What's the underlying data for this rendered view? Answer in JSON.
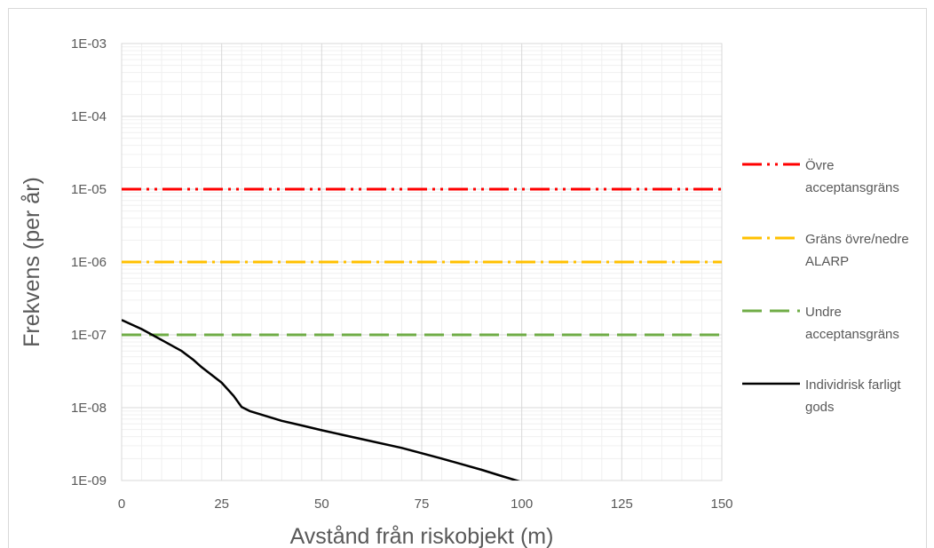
{
  "chart_data": {
    "type": "line",
    "title": "",
    "xlabel": "Avstånd från riskobjekt (m)",
    "ylabel": "Frekvens (per år)",
    "xlim": [
      0,
      150
    ],
    "ylim": [
      1e-09,
      0.001
    ],
    "yscale": "log",
    "x_ticks": [
      0,
      25,
      50,
      75,
      100,
      125,
      150
    ],
    "x_tick_labels": [
      "0",
      "25",
      "50",
      "75",
      "100",
      "125",
      "150"
    ],
    "y_ticks": [
      1e-09,
      1e-08,
      1e-07,
      1e-06,
      1e-05,
      0.0001,
      0.001
    ],
    "y_tick_labels": [
      "1E-09",
      "1E-08",
      "1E-07",
      "1E-06",
      "1E-05",
      "1E-04",
      "1E-03"
    ],
    "grid": true,
    "legend_position": "right",
    "series": [
      {
        "name": "Övre acceptansgräns",
        "legend_lines": [
          "Övre",
          "acceptansgräns"
        ],
        "color": "#ff0000",
        "dash": "dash-dot-dot",
        "x": [
          0,
          150
        ],
        "y": [
          1e-05,
          1e-05
        ]
      },
      {
        "name": "Gräns övre/nedre ALARP",
        "legend_lines": [
          "Gräns övre/nedre",
          "ALARP"
        ],
        "color": "#ffc000",
        "dash": "dash-dot",
        "x": [
          0,
          150
        ],
        "y": [
          1e-06,
          1e-06
        ]
      },
      {
        "name": "Undre acceptansgräns",
        "legend_lines": [
          "Undre",
          "acceptansgräns"
        ],
        "color": "#70ad47",
        "dash": "dash",
        "x": [
          0,
          150
        ],
        "y": [
          1e-07,
          1e-07
        ]
      },
      {
        "name": "Individrisk farligt gods",
        "legend_lines": [
          "Individrisk farligt",
          "gods"
        ],
        "color": "#000000",
        "dash": "solid",
        "x": [
          0,
          5,
          10,
          15,
          18,
          20,
          25,
          28,
          30,
          32,
          35,
          40,
          45,
          50,
          60,
          70,
          80,
          90,
          95,
          100,
          102
        ],
        "y": [
          1.6e-07,
          1.2e-07,
          8.5e-08,
          6e-08,
          4.5e-08,
          3.6e-08,
          2.2e-08,
          1.45e-08,
          1.02e-08,
          9e-09,
          8e-09,
          6.6e-09,
          5.7e-09,
          4.9e-09,
          3.7e-09,
          2.8e-09,
          2e-09,
          1.4e-09,
          1.15e-09,
          9.5e-10,
          9e-10
        ]
      }
    ]
  }
}
